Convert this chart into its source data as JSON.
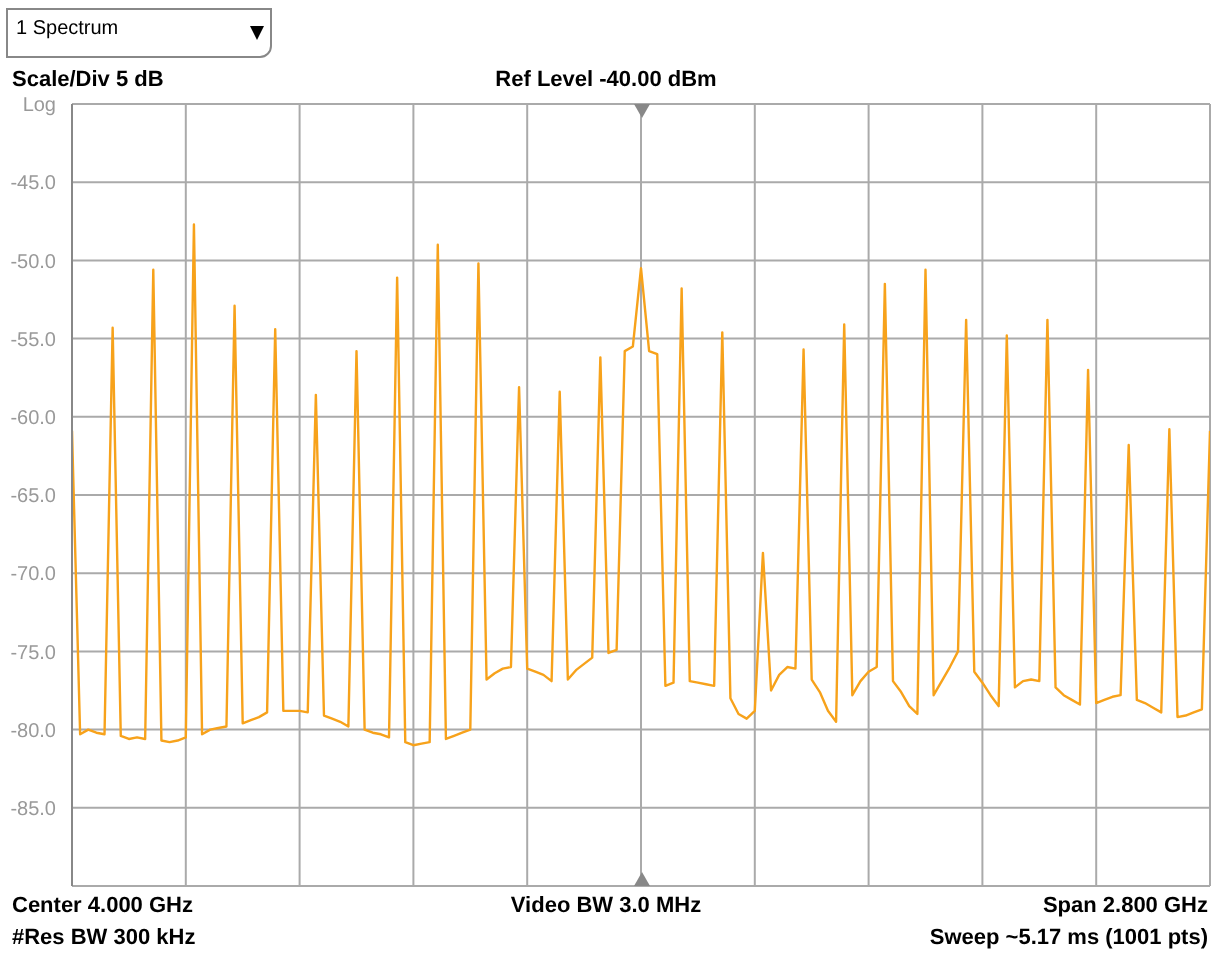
{
  "chart_data": {
    "type": "line",
    "annotations": [
      "1 Spectrum",
      "Scale/Div 5 dB",
      "Ref Level -40.00 dBm",
      "Center 4.000 GHz",
      "#Res BW 300 kHz",
      "Video BW 3.0 MHz",
      "Span 2.800 GHz",
      "Sweep ~5.17 ms (1001 pts)"
    ],
    "categories": [
      null,
      null,
      null,
      null,
      null,
      null,
      null,
      null,
      null,
      null,
      null,
      null,
      null,
      null,
      null,
      null,
      null,
      null,
      null,
      null,
      null,
      null,
      null,
      null,
      null,
      null,
      null,
      null,
      null,
      null,
      null,
      null,
      null,
      null,
      null,
      null,
      null,
      null,
      null,
      null,
      null,
      null,
      null,
      null,
      null,
      null,
      null,
      null,
      null,
      null,
      null,
      null,
      null,
      null,
      null,
      null,
      null,
      null,
      null,
      null,
      null,
      null,
      null,
      null,
      null,
      null,
      null,
      null,
      null,
      null,
      null,
      null,
      null,
      null,
      null,
      null,
      null,
      null,
      null,
      null,
      null,
      null,
      null,
      null,
      null,
      null,
      null,
      null,
      null,
      null,
      null,
      null,
      null,
      null,
      null,
      null,
      null,
      null,
      null,
      null,
      null,
      null,
      null,
      null,
      null,
      null,
      null,
      null,
      null,
      null,
      null,
      null,
      null,
      null,
      null,
      null,
      null,
      null,
      null,
      null,
      null,
      null,
      null,
      null,
      null,
      null,
      null,
      null,
      null,
      null,
      null,
      null,
      null,
      null,
      null,
      null,
      null,
      null,
      null,
      null,
      null
    ],
    "ylim": [
      -90,
      -40
    ],
    "yticks": [
      {
        "value": -40,
        "label": "Log"
      },
      {
        "value": -45,
        "label": "-45.0"
      },
      {
        "value": -50,
        "label": "-50.0"
      },
      {
        "value": -55,
        "label": "-55.0"
      },
      {
        "value": -60,
        "label": "-60.0"
      },
      {
        "value": -65,
        "label": "-65.0"
      },
      {
        "value": -70,
        "label": "-70.0"
      },
      {
        "value": -75,
        "label": "-75.0"
      },
      {
        "value": -80,
        "label": "-80.0"
      },
      {
        "value": -85,
        "label": "-85.0"
      },
      {
        "value": -90,
        "label": null
      }
    ],
    "tick_labels": "y",
    "grid": true,
    "series": [
      {
        "color": "#f7a21b",
        "values": [
          -60.9,
          -80.3,
          -80.0,
          -80.2,
          -80.3,
          -54.3,
          -80.4,
          -80.6,
          -80.5,
          -80.6,
          -50.6,
          -80.7,
          -80.8,
          -80.7,
          -80.5,
          -47.7,
          -80.3,
          -80.0,
          -79.9,
          -79.8,
          -52.9,
          -79.6,
          -79.4,
          -79.2,
          -78.9,
          -54.4,
          -78.8,
          -78.8,
          -78.8,
          -78.9,
          -58.6,
          -79.1,
          -79.3,
          -79.5,
          -79.8,
          -55.8,
          -80.0,
          -80.2,
          -80.3,
          -80.5,
          -51.1,
          -80.8,
          -81.0,
          -80.9,
          -80.8,
          -49.0,
          -80.6,
          -80.4,
          -80.2,
          -80.0,
          -50.2,
          -76.8,
          -76.4,
          -76.1,
          -76.0,
          -58.1,
          -76.1,
          -76.3,
          -76.5,
          -76.9,
          -58.4,
          -76.8,
          -76.2,
          -75.8,
          -75.4,
          -56.2,
          -75.1,
          -74.9,
          -55.8,
          -55.5,
          -50.5,
          -55.8,
          -56.0,
          -77.2,
          -77.0,
          -51.8,
          -76.9,
          -77.0,
          -77.1,
          -77.2,
          -54.6,
          -78.0,
          -79.0,
          -79.3,
          -78.8,
          -68.7,
          -77.5,
          -76.5,
          -76.0,
          -76.1,
          -55.7,
          -76.8,
          -77.6,
          -78.8,
          -79.5,
          -54.1,
          -77.8,
          -76.9,
          -76.3,
          -76.0,
          -51.5,
          -76.9,
          -77.6,
          -78.5,
          -79.0,
          -50.6,
          -77.8,
          -76.9,
          -76.0,
          -75.0,
          -53.8,
          -76.3,
          -77.0,
          -77.8,
          -78.5,
          -54.8,
          -77.3,
          -76.9,
          -76.8,
          -76.9,
          -53.8,
          -77.3,
          -77.8,
          -78.1,
          -78.4,
          -57.0,
          -78.3,
          -78.1,
          -77.9,
          -77.8,
          -61.8,
          -78.1,
          -78.3,
          -78.6,
          -78.9,
          -60.8,
          -79.2,
          -79.1,
          -78.9,
          -78.7,
          -60.9
        ]
      }
    ]
  }
}
